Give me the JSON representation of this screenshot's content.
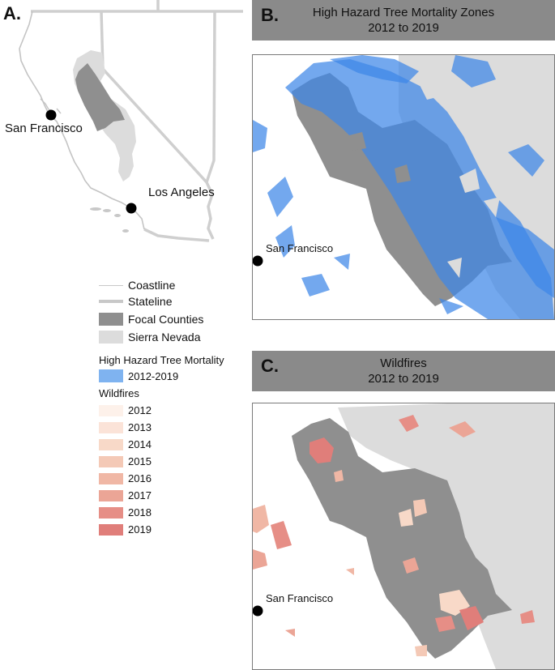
{
  "panel_a": {
    "label": "A.",
    "cities": [
      {
        "name": "San Francisco"
      },
      {
        "name": "Los Angeles"
      }
    ]
  },
  "panel_b": {
    "label": "B.",
    "title_line1": "High Hazard Tree Mortality Zones",
    "title_line2": "2012 to 2019",
    "city": "San Francisco"
  },
  "panel_c": {
    "label": "C.",
    "title_line1": "Wildfires",
    "title_line2": "2012 to 2019",
    "city": "San Francisco"
  },
  "legend": {
    "items": [
      {
        "label": "Coastline",
        "kind": "thin-line",
        "color": "#c8c8c8"
      },
      {
        "label": "Stateline",
        "kind": "thick-line",
        "color": "#c8c8c8"
      },
      {
        "label": "Focal Counties",
        "kind": "fill",
        "color": "#8f8f8f"
      },
      {
        "label": "Sierra Nevada",
        "kind": "fill",
        "color": "#dcdcdc"
      }
    ],
    "mortality_title": "High Hazard Tree Mortality",
    "mortality_item": {
      "label": "2012-2019",
      "color": "#7fb3f0"
    },
    "wildfires_title": "Wildfires",
    "wildfire_years": [
      {
        "label": "2012",
        "color": "#fdf1ea"
      },
      {
        "label": "2013",
        "color": "#fbe3d8"
      },
      {
        "label": "2014",
        "color": "#f8d9c8"
      },
      {
        "label": "2015",
        "color": "#f4c9b6"
      },
      {
        "label": "2016",
        "color": "#f0b7a5"
      },
      {
        "label": "2017",
        "color": "#eba596"
      },
      {
        "label": "2018",
        "color": "#e68e86"
      },
      {
        "label": "2019",
        "color": "#e07e7a"
      }
    ]
  },
  "colors": {
    "header_bg": "#8a8a8a",
    "county": "#8f8f8f",
    "sierra": "#dcdcdc",
    "mortality": "#3d86e8",
    "stateline": "#c8c8c8"
  }
}
